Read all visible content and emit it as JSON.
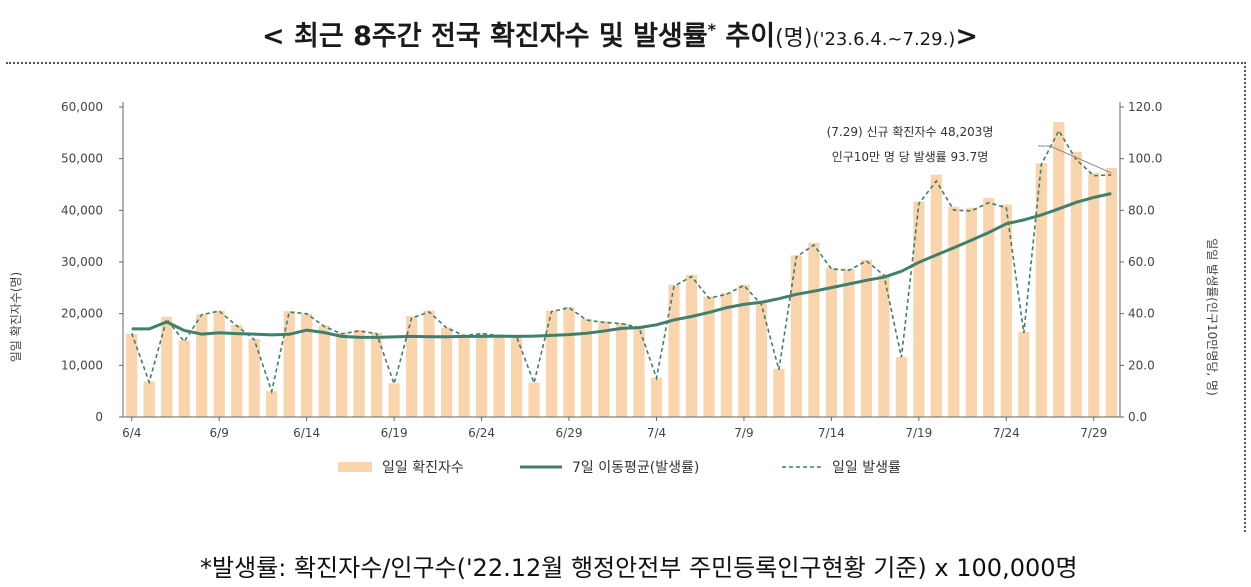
{
  "title": {
    "main": "< 최근 8주간 전국 확진자수 및 발생률",
    "star": "*",
    "after": " 추이",
    "unit": "(명)",
    "range": "('23.6.4.~7.29.)",
    "close": ">"
  },
  "footnote": "*발생률: 확진자수/인구수('22.12월 행정안전부 주민등록인구현황 기준) x 100,000명",
  "colors": {
    "bar": "#f9d4ac",
    "avg_line": "#3f7f6b",
    "daily_line": "#3f7f6b"
  },
  "chart_data": {
    "type": "bar",
    "title": "",
    "x_tick_labels": [
      "6/4",
      "6/9",
      "6/14",
      "6/19",
      "6/24",
      "6/29",
      "7/4",
      "7/9",
      "7/14",
      "7/19",
      "7/24",
      "7/29"
    ],
    "x_tick_every": 5,
    "ylabel": "일일 확진자수(명)",
    "y2label": "일일 발생률(인구10만명당, 명)",
    "ylim": [
      0,
      60000
    ],
    "y_ticks": [
      "0",
      "10,000",
      "20,000",
      "30,000",
      "40,000",
      "50,000",
      "60,000"
    ],
    "y2lim": [
      0,
      120
    ],
    "y2_ticks": [
      "0.0",
      "20.0",
      "40.0",
      "60.0",
      "80.0",
      "100.0",
      "120.0"
    ],
    "legend_position": "bottom",
    "series": [
      {
        "name": "일일 확진자수",
        "type": "bar",
        "axis": "left",
        "values": [
          16100,
          6900,
          19400,
          14800,
          19900,
          20600,
          17800,
          15100,
          5000,
          20500,
          20000,
          17700,
          16300,
          16800,
          16300,
          6500,
          19500,
          20600,
          17300,
          15900,
          16300,
          15900,
          15700,
          6700,
          20600,
          21300,
          19000,
          18500,
          18200,
          17500,
          7600,
          25600,
          27500,
          23300,
          24000,
          25600,
          22000,
          9300,
          31300,
          33700,
          28900,
          28700,
          30400,
          27600,
          11600,
          41700,
          46900,
          40700,
          40500,
          42400,
          41100,
          16500,
          49100,
          57100,
          51300,
          47200,
          48203
        ]
      },
      {
        "name": "7일 이동평균(발생률)",
        "type": "line",
        "axis": "right",
        "values": [
          34.1,
          34.1,
          36.8,
          33.5,
          32.1,
          32.6,
          32.3,
          32.1,
          31.8,
          32.0,
          33.6,
          32.7,
          31.2,
          30.9,
          30.8,
          31.0,
          31.2,
          31.1,
          31.1,
          31.2,
          31.2,
          31.3,
          31.2,
          31.3,
          31.6,
          31.9,
          32.4,
          33.3,
          34.3,
          34.6,
          35.7,
          37.6,
          38.9,
          40.5,
          42.3,
          43.6,
          44.4,
          45.8,
          47.5,
          48.7,
          50.1,
          51.5,
          52.9,
          54.1,
          56.4,
          59.9,
          62.7,
          65.5,
          68.4,
          71.4,
          74.8,
          76.3,
          78.2,
          80.6,
          83.1,
          85.0,
          86.5
        ]
      },
      {
        "name": "일일 발생률",
        "type": "line",
        "style": "dashed",
        "axis": "right",
        "values": [
          32.4,
          13.5,
          37.9,
          29.2,
          39.6,
          41.0,
          35.3,
          30.0,
          9.9,
          40.6,
          40.0,
          35.1,
          32.2,
          33.3,
          32.3,
          12.8,
          38.3,
          40.7,
          34.5,
          31.5,
          32.3,
          31.5,
          31.0,
          13.2,
          40.8,
          42.3,
          37.5,
          36.6,
          36.1,
          34.7,
          15.1,
          50.6,
          54.4,
          46.0,
          47.5,
          50.9,
          43.5,
          18.3,
          62.0,
          66.6,
          57.3,
          56.8,
          60.4,
          54.9,
          23.1,
          82.6,
          91.3,
          80.1,
          79.8,
          83.0,
          81.0,
          32.5,
          97.7,
          110.8,
          99.6,
          93.4,
          93.7
        ]
      }
    ],
    "annotation": [
      "(7.29) 신규 확진자수 48,203명",
      "인구10만 명 당 발생률 93.7명"
    ]
  }
}
